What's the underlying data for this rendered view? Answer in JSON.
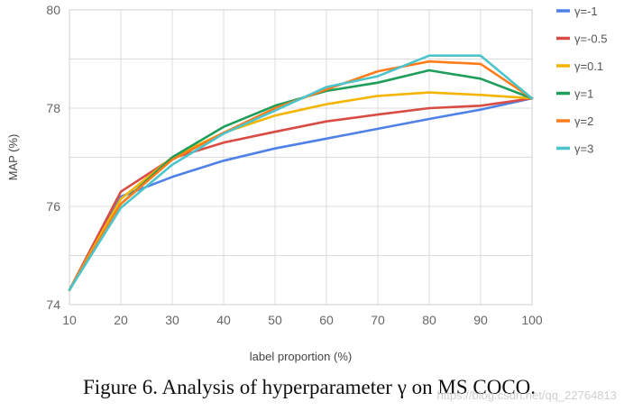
{
  "chart_data": {
    "type": "line",
    "title": "",
    "xlabel": "label proportion (%)",
    "ylabel": "MAP (%)",
    "x": [
      10,
      20,
      30,
      40,
      50,
      60,
      70,
      80,
      90,
      100
    ],
    "xlim": [
      10,
      100
    ],
    "ylim": [
      74,
      80
    ],
    "x_ticks": [
      "10",
      "20",
      "30",
      "40",
      "50",
      "60",
      "70",
      "80",
      "90",
      "100"
    ],
    "y_ticks": [
      "74",
      "76",
      "78",
      "80"
    ],
    "grid": true,
    "legend_position": "right",
    "series": [
      {
        "name": "γ=-1",
        "color": "#4f81e8",
        "values": [
          74.3,
          76.2,
          76.6,
          76.93,
          77.18,
          77.38,
          77.58,
          77.78,
          77.97,
          78.2
        ]
      },
      {
        "name": "γ=-0.5",
        "color": "#d94c43",
        "values": [
          74.3,
          76.3,
          76.98,
          77.3,
          77.52,
          77.73,
          77.87,
          78.0,
          78.05,
          78.2
        ]
      },
      {
        "name": "γ=0.1",
        "color": "#f4b400",
        "values": [
          74.3,
          76.15,
          77.0,
          77.5,
          77.85,
          78.08,
          78.25,
          78.32,
          78.27,
          78.2
        ]
      },
      {
        "name": "γ=1",
        "color": "#1e9e5a",
        "values": [
          74.3,
          76.05,
          77.0,
          77.62,
          78.05,
          78.35,
          78.52,
          78.77,
          78.6,
          78.2
        ]
      },
      {
        "name": "γ=2",
        "color": "#ff7c1a",
        "values": [
          74.3,
          76.05,
          76.95,
          77.5,
          78.0,
          78.38,
          78.75,
          78.95,
          78.9,
          78.2
        ]
      },
      {
        "name": "γ=3",
        "color": "#4cc4cc",
        "values": [
          74.3,
          75.97,
          76.85,
          77.48,
          77.95,
          78.43,
          78.65,
          79.07,
          79.07,
          78.2
        ]
      }
    ]
  },
  "caption": "Figure 6. Analysis of hyperparameter γ on MS COCO.",
  "watermark": "https://blog.csdn.net/qq_22764813"
}
